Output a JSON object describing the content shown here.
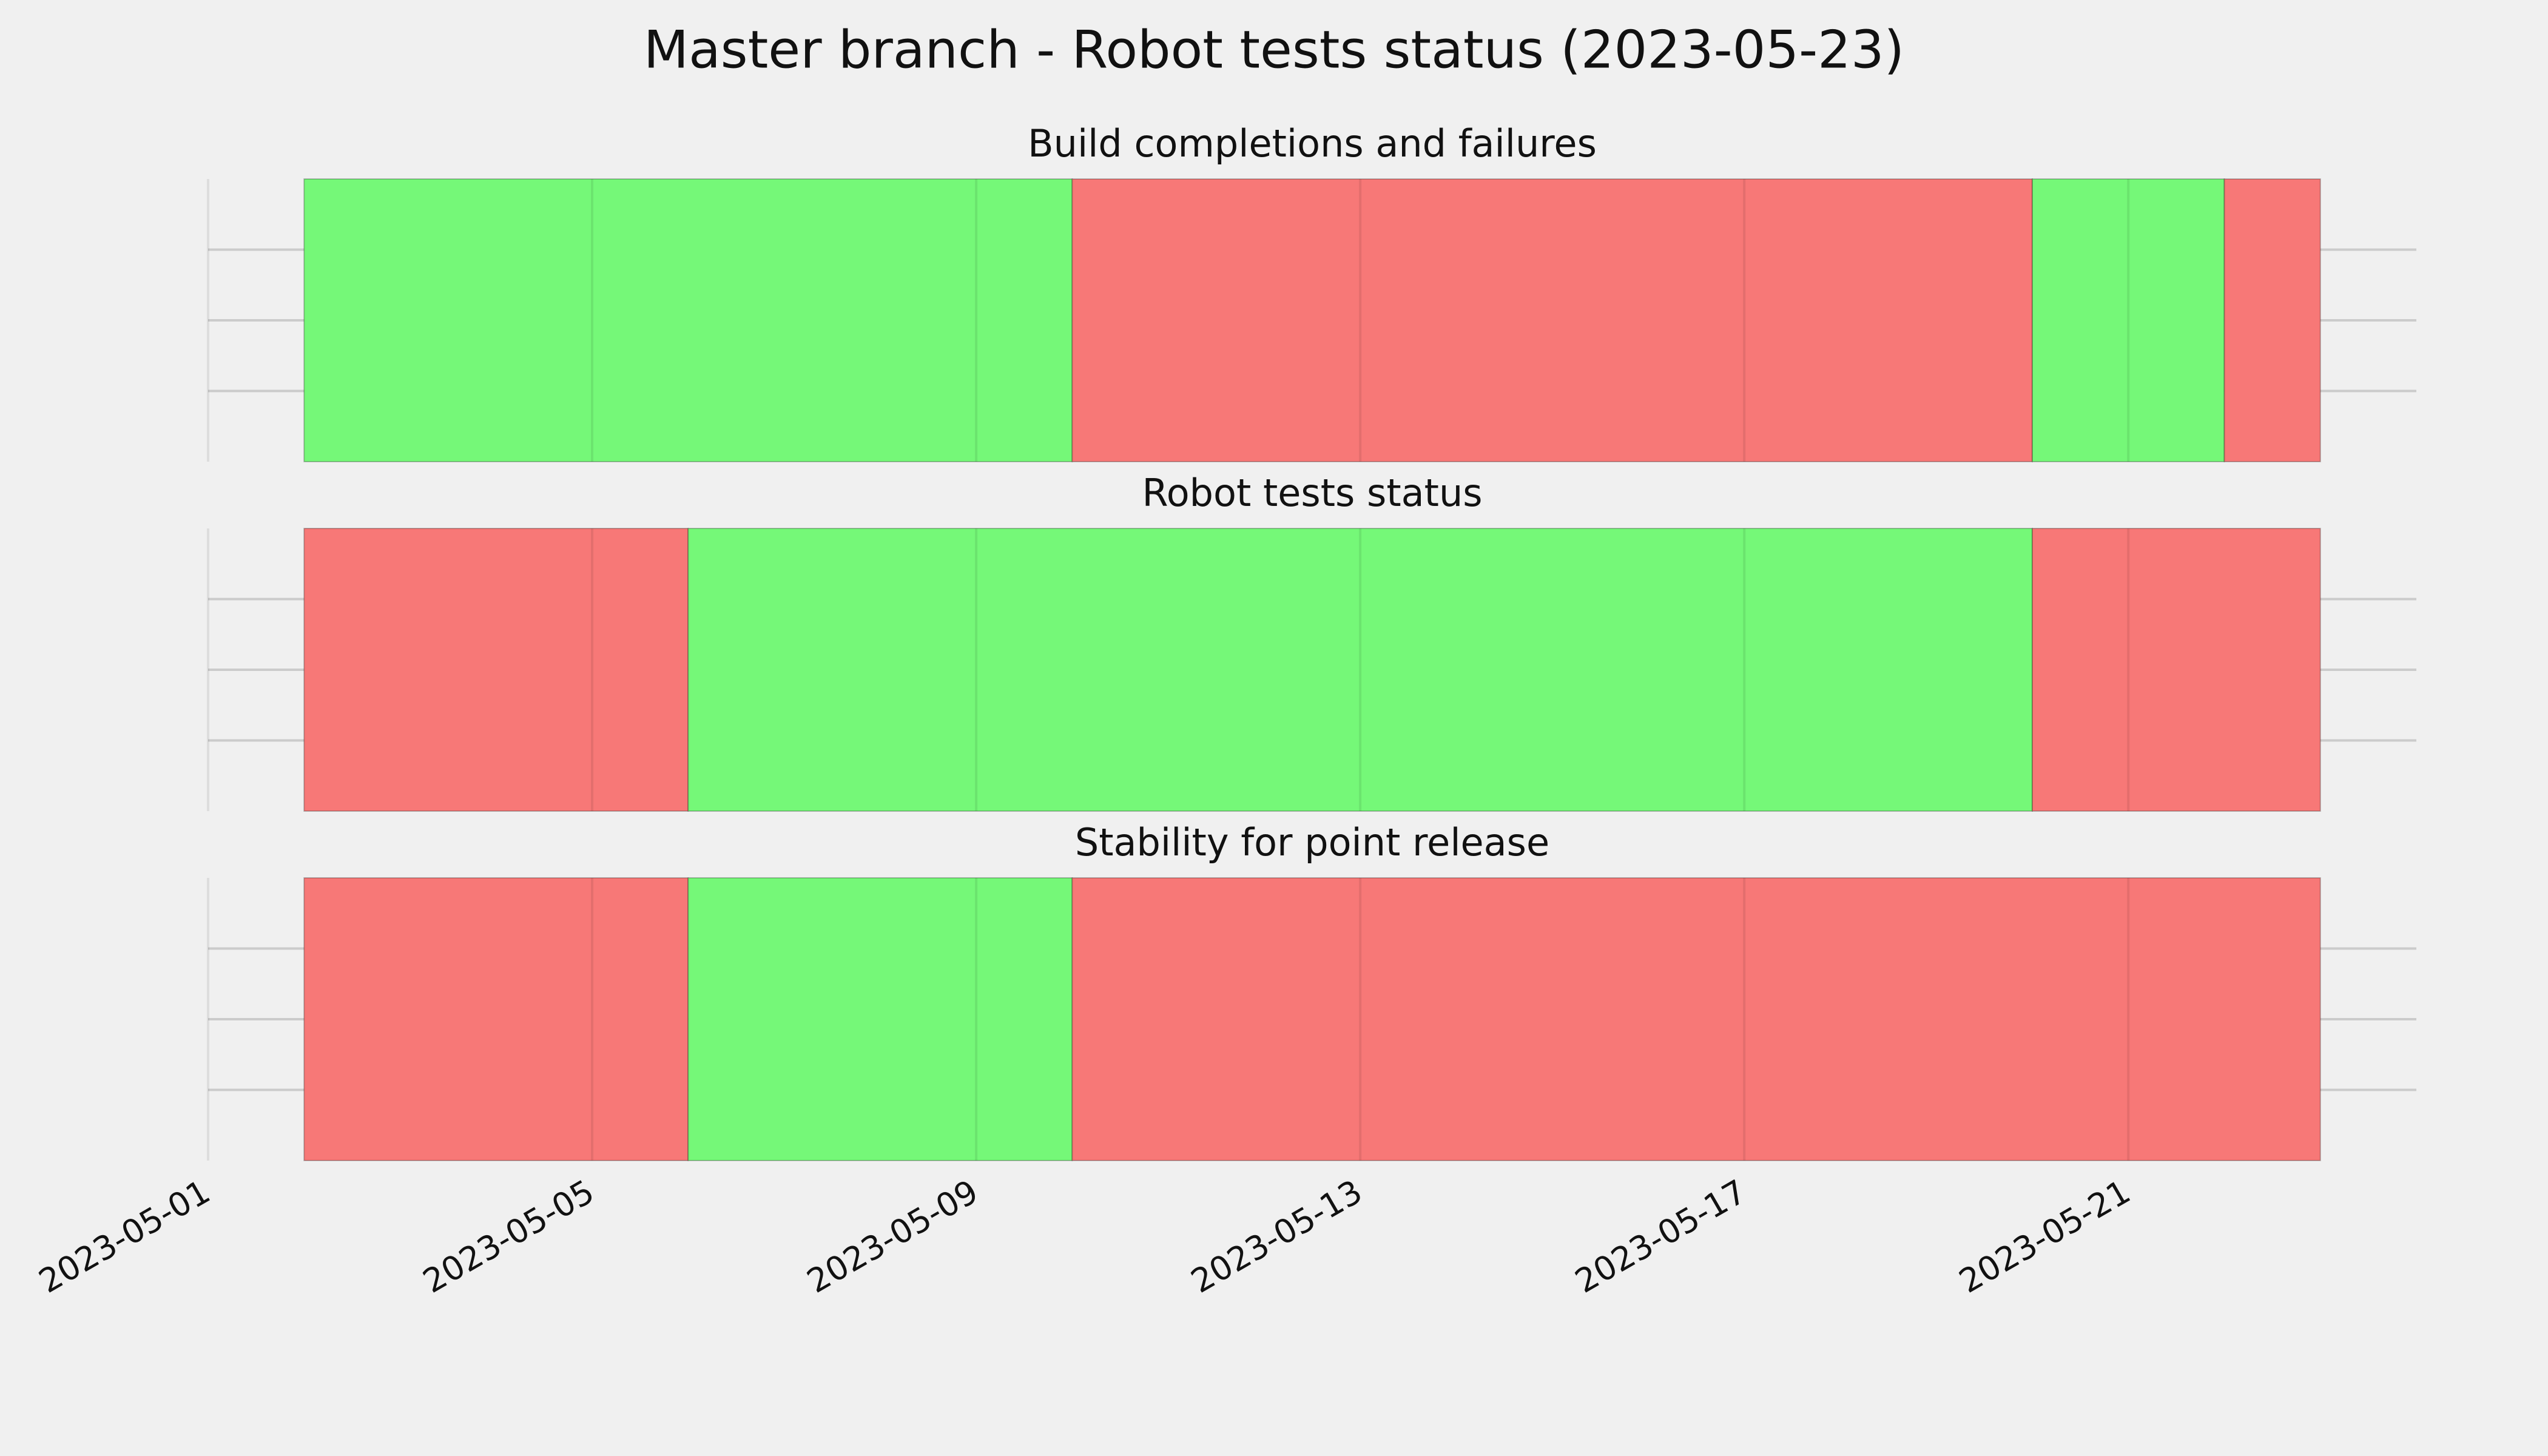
{
  "title": "Master branch - Robot tests status (2023-05-23)",
  "chart_data": [
    {
      "type": "timeline",
      "title": "Build completions and failures",
      "spans": [
        {
          "start": "2023-05-02",
          "end": "2023-05-10",
          "color": "#75f878"
        },
        {
          "start": "2023-05-10",
          "end": "2023-05-20",
          "color": "#f77877"
        },
        {
          "start": "2023-05-20",
          "end": "2023-05-22",
          "color": "#75f878"
        },
        {
          "start": "2023-05-22",
          "end": "2023-05-23",
          "color": "#f77877"
        }
      ],
      "xlim": [
        "2023-05-01",
        "2023-05-24"
      ],
      "xticks": [
        "2023-05-01",
        "2023-05-05",
        "2023-05-09",
        "2023-05-13",
        "2023-05-17",
        "2023-05-21"
      ],
      "ylim": [
        0,
        1
      ],
      "yticks": [
        0.25,
        0.5,
        0.75
      ],
      "grid": true
    },
    {
      "type": "timeline",
      "title": "Robot tests status",
      "spans": [
        {
          "start": "2023-05-02",
          "end": "2023-05-06",
          "color": "#f77877"
        },
        {
          "start": "2023-05-06",
          "end": "2023-05-20",
          "color": "#75f878"
        },
        {
          "start": "2023-05-20",
          "end": "2023-05-23",
          "color": "#f77877"
        }
      ],
      "xlim": [
        "2023-05-01",
        "2023-05-24"
      ],
      "xticks": [
        "2023-05-01",
        "2023-05-05",
        "2023-05-09",
        "2023-05-13",
        "2023-05-17",
        "2023-05-21"
      ],
      "ylim": [
        0,
        1
      ],
      "yticks": [
        0.25,
        0.5,
        0.75
      ],
      "grid": true
    },
    {
      "type": "timeline",
      "title": "Stability for point release",
      "spans": [
        {
          "start": "2023-05-02",
          "end": "2023-05-06",
          "color": "#f77877"
        },
        {
          "start": "2023-05-06",
          "end": "2023-05-10",
          "color": "#75f878"
        },
        {
          "start": "2023-05-10",
          "end": "2023-05-23",
          "color": "#f77877"
        }
      ],
      "xlim": [
        "2023-05-01",
        "2023-05-24"
      ],
      "xticks": [
        "2023-05-01",
        "2023-05-05",
        "2023-05-09",
        "2023-05-13",
        "2023-05-17",
        "2023-05-21"
      ],
      "ylim": [
        0,
        1
      ],
      "yticks": [
        0.25,
        0.5,
        0.75
      ],
      "grid": true
    }
  ]
}
